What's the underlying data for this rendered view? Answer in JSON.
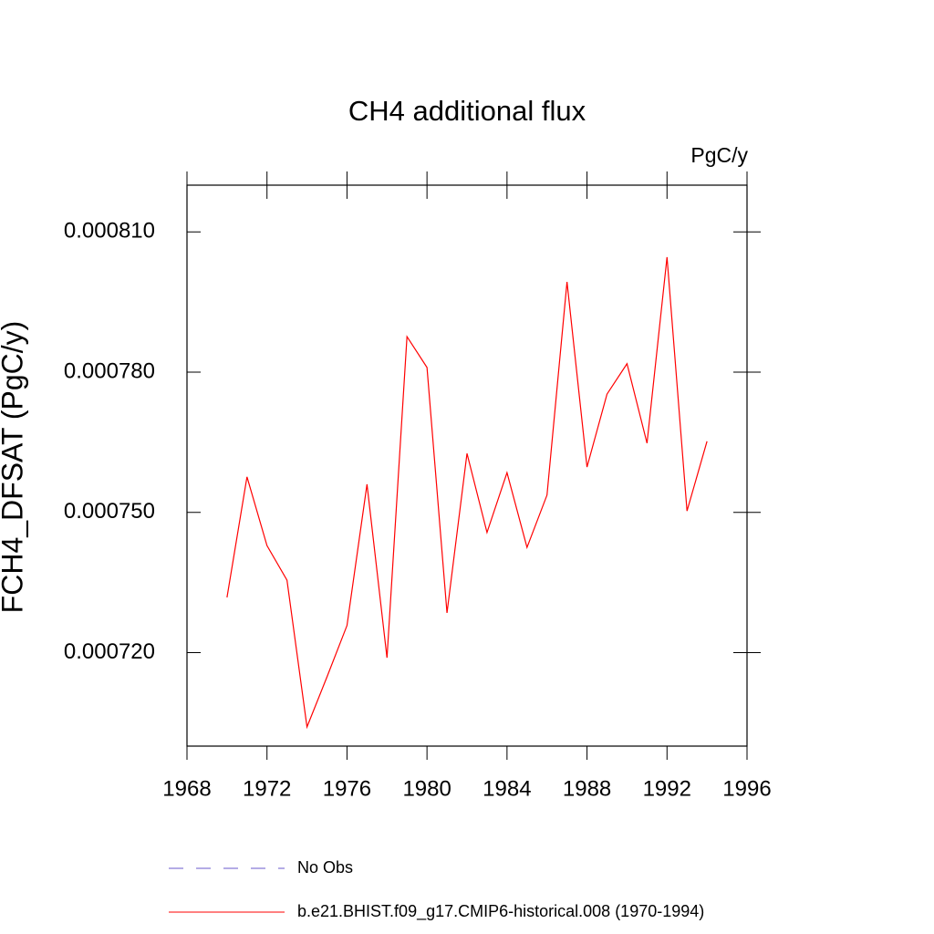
{
  "chart_data": {
    "type": "line",
    "title": "CH4 additional flux",
    "units": "PgC/y",
    "ylabel": "FCH4_DFSAT  (PgC/y)",
    "x": [
      1970,
      1971,
      1972,
      1973,
      1974,
      1975,
      1976,
      1977,
      1978,
      1979,
      1980,
      1981,
      1982,
      1983,
      1984,
      1985,
      1986,
      1987,
      1988,
      1989,
      1990,
      1991,
      1992,
      1993,
      1994
    ],
    "series": [
      {
        "name": "No Obs",
        "color": "#6a5acd",
        "dashed": true,
        "values": [
          null,
          null,
          null,
          null,
          null,
          null,
          null,
          null,
          null,
          null,
          null,
          null,
          null,
          null,
          null,
          null,
          null,
          null,
          null,
          null,
          null,
          null,
          null,
          null,
          null
        ]
      },
      {
        "name": "b.e21.BHIST.f09_g17.CMIP6-historical.008 (1970-1994)",
        "color": "#ff0000",
        "dashed": false,
        "values": [
          0.0007318,
          0.0007576,
          0.0007429,
          0.0007355,
          0.0007041,
          0.0007148,
          0.0007258,
          0.000756,
          0.0007189,
          0.0007876,
          0.000781,
          0.0007285,
          0.0007626,
          0.0007457,
          0.0007585,
          0.0007425,
          0.0007537,
          0.0007993,
          0.0007597,
          0.0007753,
          0.0007818,
          0.0007648,
          0.0008046,
          0.0007503,
          0.0007652
        ]
      }
    ],
    "xlim": [
      1968,
      1996
    ],
    "xticks": [
      1968,
      1972,
      1976,
      1980,
      1984,
      1988,
      1992,
      1996
    ],
    "ylim": [
      0.0007,
      0.00082
    ],
    "yticks": [
      {
        "value": 0.00072,
        "label": "0.000720"
      },
      {
        "value": 0.00075,
        "label": "0.000750"
      },
      {
        "value": 0.00078,
        "label": "0.000780"
      },
      {
        "value": 0.00081,
        "label": "0.000810"
      }
    ],
    "grid": false
  }
}
